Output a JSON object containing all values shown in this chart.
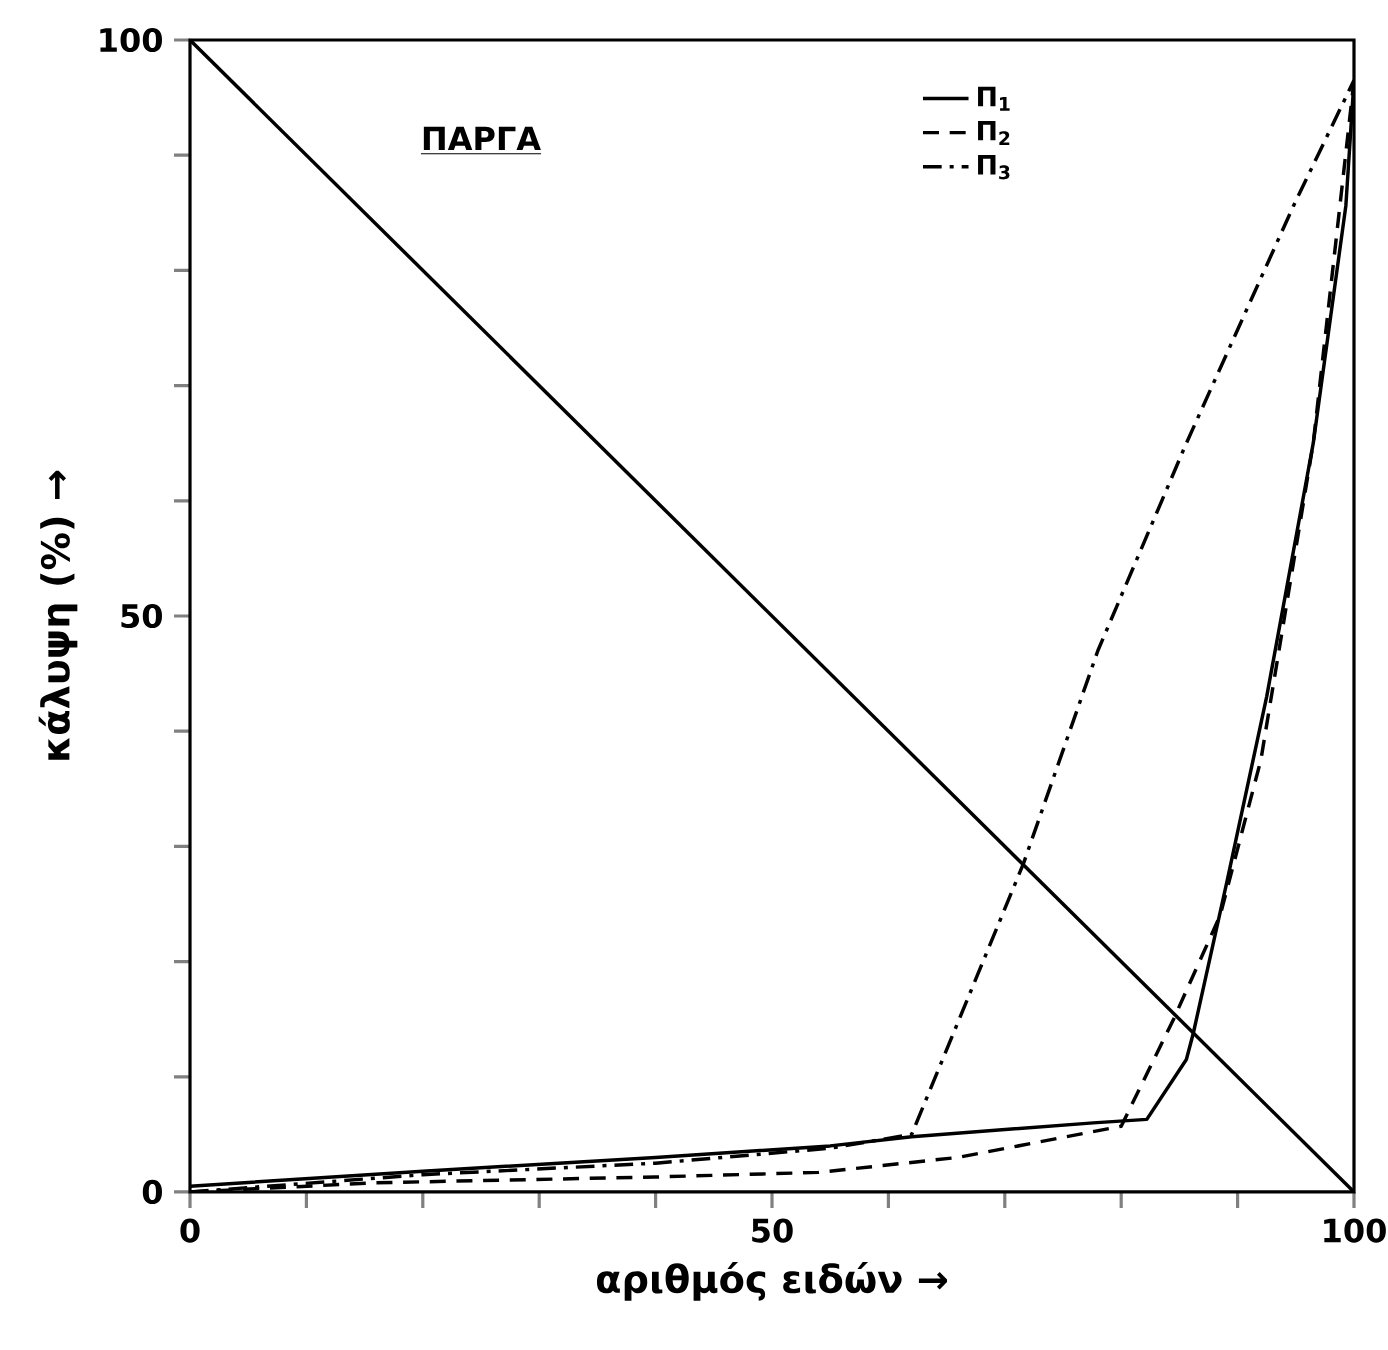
{
  "chart_data": {
    "type": "line",
    "title": "ΠΑΡΓΑ",
    "xlabel": "αριθμός ειδών →",
    "ylabel": "κάλυψη (%) →",
    "xlim": [
      0,
      100
    ],
    "ylim": [
      0,
      100
    ],
    "xticks": [
      0,
      {
        "value": 10,
        "label": null
      },
      {
        "value": 20,
        "label": null
      },
      {
        "value": 30,
        "label": null
      },
      {
        "value": 40,
        "label": null
      },
      50,
      {
        "value": 60,
        "label": null
      },
      {
        "value": 70,
        "label": null
      },
      {
        "value": 80,
        "label": null
      },
      {
        "value": 90,
        "label": null
      },
      100
    ],
    "yticks": [
      0,
      {
        "value": 10,
        "label": null
      },
      {
        "value": 20,
        "label": null
      },
      {
        "value": 30,
        "label": null
      },
      {
        "value": 40,
        "label": null
      },
      50,
      {
        "value": 60,
        "label": null
      },
      {
        "value": 70,
        "label": null
      },
      {
        "value": 80,
        "label": null
      },
      {
        "value": 90,
        "label": null
      },
      100
    ],
    "grid": false,
    "legend": "top right",
    "marker": "none",
    "series": [
      {
        "name": "Π$_{1}$",
        "color": "#000000",
        "line_style": "solid",
        "x": [
          0,
          20,
          40,
          55,
          62,
          77.6,
          82.2,
          85.6,
          86.2,
          89.1,
          92.5,
          96.5,
          99.3,
          100
        ],
        "values": [
          0.5,
          1.8,
          3,
          4,
          4.8,
          6,
          6.3,
          11.5,
          13.8,
          27,
          43,
          65,
          85.6,
          96.5
        ]
      },
      {
        "name": "Π$_{2}$",
        "color": "#000000",
        "line_style": "dashed",
        "x": [
          0,
          16,
          40,
          54,
          66,
          80,
          84.5,
          88.5,
          92,
          96.5,
          100
        ],
        "values": [
          0,
          0.8,
          1.3,
          1.7,
          3,
          5.7,
          15,
          24,
          37.5,
          65,
          96.5
        ]
      },
      {
        "name": "Π$_{3}$",
        "color": "#000000",
        "line_style": "dashdotted",
        "x": [
          0,
          20,
          40,
          55,
          62,
          71.6,
          78,
          85.6,
          94.8,
          100
        ],
        "values": [
          0,
          1.5,
          2.5,
          3.8,
          5,
          28.5,
          47,
          65,
          85.6,
          96.5
        ]
      },
      {
        "color": "#000000",
        "line_style": "solid",
        "x": [
          0,
          100
        ],
        "values": [
          100,
          0
        ]
      }
    ]
  }
}
